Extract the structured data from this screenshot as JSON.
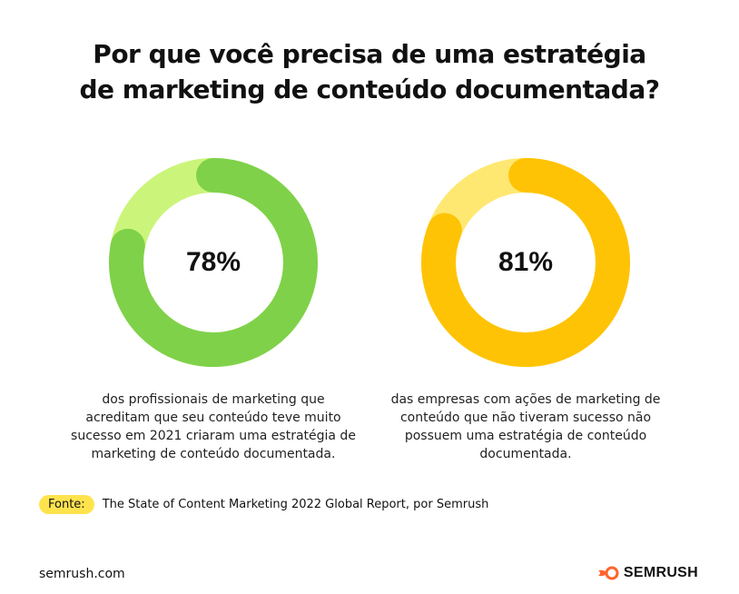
{
  "title": {
    "line1": "Por que você precisa de uma estratégia",
    "line2": "de marketing de conteúdo documentada?"
  },
  "chart_data": [
    {
      "type": "pie",
      "value": 78,
      "value_label": "78%",
      "slices": [
        78,
        22
      ],
      "caption": "dos profissionais de marketing que acreditam que seu conteúdo teve muito sucesso em 2021 criaram uma estratégia de marketing de conteúdo documentada.",
      "colors": {
        "value": "#7fd14a",
        "rest": "#cbf57a"
      }
    },
    {
      "type": "pie",
      "value": 81,
      "value_label": "81%",
      "slices": [
        81,
        19
      ],
      "caption": "das empresas com ações de marketing de conteúdo que não tiveram sucesso não possuem uma estratégia de conteúdo documentada.",
      "colors": {
        "value": "#ffc305",
        "rest": "#ffe872"
      }
    }
  ],
  "source": {
    "badge": "Fonte:",
    "text": "The State of Content Marketing 2022 Global Report, por Semrush"
  },
  "footer": {
    "url": "semrush.com",
    "brand": "SEMRUSH",
    "brand_color": "#ff642d"
  }
}
